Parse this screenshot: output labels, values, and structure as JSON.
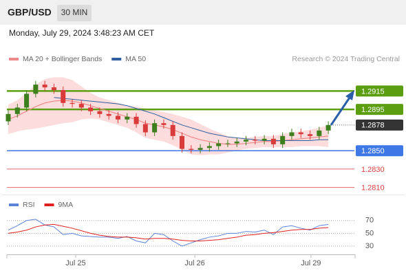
{
  "chart_data": {
    "type": "candlestick",
    "title": "GBP/USD",
    "timeframe": "30 MIN",
    "timestamp": "Monday, July 29, 2024 3:48:23 AM CET",
    "credit": "Research © 2024 Trading Central",
    "candles": {
      "open": [
        1.2882,
        1.289,
        1.2897,
        1.2912,
        1.2922,
        1.2919,
        1.2916,
        1.2902,
        1.2901,
        1.2897,
        1.2893,
        1.289,
        1.2888,
        1.2884,
        1.2887,
        1.2879,
        1.287,
        1.288,
        1.2878,
        1.2866,
        1.2852,
        1.2851,
        1.2853,
        1.2855,
        1.2858,
        1.2858,
        1.286,
        1.2862,
        1.2861,
        1.2863,
        1.2857,
        1.2866,
        1.287,
        1.2868,
        1.2866,
        1.2872
      ],
      "high": [
        1.2894,
        1.2901,
        1.2916,
        1.2926,
        1.2926,
        1.2923,
        1.292,
        1.2906,
        1.2905,
        1.2901,
        1.2897,
        1.2894,
        1.2892,
        1.2891,
        1.2891,
        1.2883,
        1.2884,
        1.2884,
        1.2882,
        1.287,
        1.2856,
        1.2857,
        1.2859,
        1.2862,
        1.2862,
        1.2864,
        1.2866,
        1.2866,
        1.2867,
        1.2867,
        1.287,
        1.2874,
        1.2874,
        1.2872,
        1.2876,
        1.2882
      ],
      "low": [
        1.2878,
        1.2886,
        1.2893,
        1.2908,
        1.2915,
        1.2912,
        1.2898,
        1.2897,
        1.2893,
        1.2889,
        1.2886,
        1.2884,
        1.288,
        1.288,
        1.2875,
        1.2866,
        1.2866,
        1.2874,
        1.2862,
        1.2848,
        1.2847,
        1.2847,
        1.2849,
        1.2851,
        1.2854,
        1.2854,
        1.2856,
        1.2857,
        1.2857,
        1.2853,
        1.2853,
        1.2862,
        1.2864,
        1.2862,
        1.2862,
        1.2868
      ],
      "close": [
        1.289,
        1.2897,
        1.2912,
        1.2922,
        1.2919,
        1.2916,
        1.2902,
        1.2901,
        1.2897,
        1.2893,
        1.289,
        1.2888,
        1.2884,
        1.2887,
        1.2879,
        1.287,
        1.288,
        1.2878,
        1.2866,
        1.2852,
        1.2851,
        1.2853,
        1.2855,
        1.2858,
        1.2858,
        1.286,
        1.2862,
        1.2861,
        1.2863,
        1.2857,
        1.2866,
        1.287,
        1.2868,
        1.2866,
        1.2872,
        1.2878
      ],
      "up_color": "#3d7f1c",
      "down_color": "#d93a3a"
    },
    "series": [
      {
        "name": "MA 20 + Bollinger Bands",
        "color": "#f08a8a",
        "band_color": "#fbd3d3",
        "values": [
          1.2884,
          1.2888,
          1.2893,
          1.2898,
          1.2902,
          1.2904,
          1.2905,
          1.2904,
          1.2902,
          1.2899,
          1.2896,
          1.2893,
          1.289,
          1.2887,
          1.2884,
          1.288,
          1.2878,
          1.2876,
          1.2873,
          1.2869,
          1.2865,
          1.2862,
          1.286,
          1.2858,
          1.2857,
          1.2857,
          1.2858,
          1.2859,
          1.286,
          1.286,
          1.2861,
          1.2862,
          1.2863,
          1.2864,
          1.2865,
          1.2866
        ],
        "upper": [
          1.29,
          1.2905,
          1.2913,
          1.2922,
          1.2928,
          1.293,
          1.293,
          1.2927,
          1.292,
          1.2913,
          1.2908,
          1.2905,
          1.2902,
          1.2899,
          1.2898,
          1.2896,
          1.2894,
          1.2892,
          1.289,
          1.2887,
          1.2884,
          1.2879,
          1.2874,
          1.287,
          1.2866,
          1.2864,
          1.2864,
          1.2865,
          1.2866,
          1.2866,
          1.2868,
          1.287,
          1.2871,
          1.2873,
          1.2875,
          1.2878
        ],
        "lower": [
          1.2868,
          1.2871,
          1.2873,
          1.2874,
          1.2876,
          1.2878,
          1.288,
          1.2881,
          1.2884,
          1.2885,
          1.2884,
          1.2881,
          1.2878,
          1.2875,
          1.287,
          1.2864,
          1.2862,
          1.286,
          1.2856,
          1.2851,
          1.2846,
          1.2845,
          1.2846,
          1.2846,
          1.2848,
          1.285,
          1.2852,
          1.2853,
          1.2854,
          1.2854,
          1.2854,
          1.2854,
          1.2855,
          1.2855,
          1.2855,
          1.2854
        ]
      },
      {
        "name": "MA 50",
        "color": "#2f5f9e",
        "values": [
          null,
          null,
          null,
          null,
          null,
          1.2908,
          1.2907,
          1.2906,
          1.2905,
          1.2904,
          1.2903,
          1.2902,
          1.2901,
          1.2899,
          1.2896,
          1.2893,
          1.289,
          1.2886,
          1.2882,
          1.2878,
          1.2875,
          1.2872,
          1.2869,
          1.2867,
          1.2865,
          1.2864,
          1.2863,
          1.2862,
          1.2861,
          1.2861,
          1.2861,
          1.2861,
          1.2861,
          1.2861,
          1.2862,
          1.2862
        ]
      }
    ],
    "levels": [
      {
        "value": 1.2915,
        "label": "1.2915",
        "color": "#5b9e10",
        "style": "box"
      },
      {
        "value": 1.2895,
        "label": "1.2895",
        "color": "#5b9e10",
        "style": "box"
      },
      {
        "value": 1.2878,
        "label": "1.2878",
        "color": "#333333",
        "style": "current"
      },
      {
        "value": 1.285,
        "label": "1.2850",
        "color": "#3e78e6",
        "style": "box"
      },
      {
        "value": 1.283,
        "label": "1.2830",
        "color": "#e04040",
        "style": "text"
      },
      {
        "value": 1.281,
        "label": "1.2810",
        "color": "#e04040",
        "style": "text"
      }
    ],
    "ylim": [
      1.2803,
      1.2943
    ],
    "xlim": [
      -0.15,
      37.85
    ],
    "xticks": [
      {
        "value": 7.37,
        "label": "Jul 25"
      },
      {
        "value": 20.4,
        "label": "Jul 26"
      },
      {
        "value": 33.1,
        "label": "Jul 29"
      }
    ],
    "rsi": {
      "ylim": [
        17,
        87
      ],
      "yticks": [
        30,
        50,
        70
      ],
      "series": [
        {
          "name": "RSI",
          "color": "#5b84d8",
          "values": [
            55,
            62,
            70,
            72,
            63,
            60,
            48,
            50,
            46,
            45,
            44,
            44,
            42,
            45,
            38,
            35,
            50,
            48,
            38,
            30,
            35,
            40,
            44,
            46,
            50,
            50,
            53,
            52,
            55,
            48,
            60,
            62,
            58,
            55,
            62,
            64
          ]
        },
        {
          "name": "9MA",
          "color": "#e02020",
          "values": [
            50,
            52,
            55,
            60,
            63,
            64,
            61,
            58,
            54,
            50,
            47,
            45,
            44,
            44,
            43,
            41,
            42,
            42,
            41,
            39,
            38,
            38,
            39,
            40,
            42,
            44,
            47,
            48,
            50,
            51,
            53,
            55,
            56,
            56,
            58,
            59
          ]
        }
      ]
    }
  }
}
